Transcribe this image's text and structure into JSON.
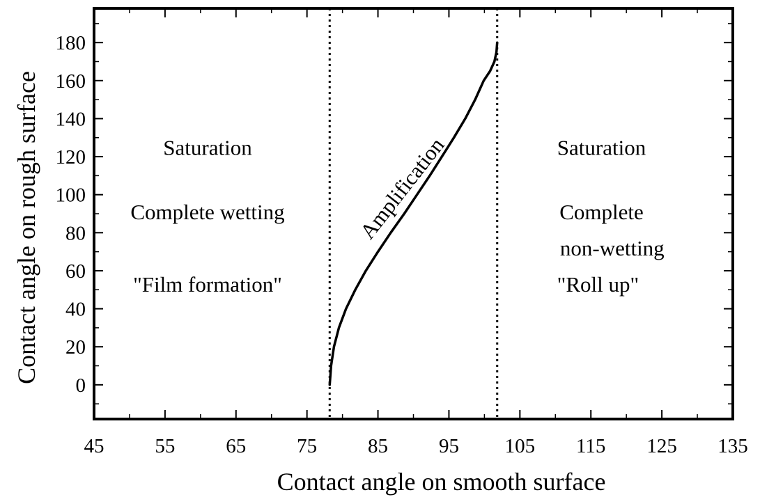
{
  "chart_data": {
    "type": "line",
    "xlabel": "Contact angle on smooth surface",
    "ylabel": "Contact angle on rough surface",
    "xlim": [
      45,
      135
    ],
    "ylim": [
      -18,
      198
    ],
    "xticks": [
      45,
      55,
      65,
      75,
      85,
      95,
      105,
      115,
      125,
      135
    ],
    "yticks": [
      0,
      20,
      40,
      60,
      80,
      100,
      120,
      140,
      160,
      180
    ],
    "grid": false,
    "series": [
      {
        "x": [
          78.2,
          78.4,
          78.8,
          79.5,
          80.5,
          81.8,
          83.3,
          85.0,
          86.8,
          88.7,
          90.5,
          92.3,
          94.0,
          95.7,
          97.3,
          98.7,
          99.9,
          100.8,
          101.4,
          101.7,
          101.8
        ],
        "y": [
          0,
          10,
          20,
          30,
          40,
          50,
          60,
          70,
          80,
          90,
          100,
          110,
          120,
          130,
          140,
          150,
          160,
          165,
          170,
          175,
          180
        ],
        "color": "#000000"
      }
    ],
    "vlines": [
      {
        "x": 78.2,
        "style": "dotted"
      },
      {
        "x": 101.8,
        "style": "dotted"
      }
    ],
    "annotations": [
      {
        "text": "Saturation",
        "x": 61,
        "y": 121,
        "rotation": 0
      },
      {
        "text": "Complete wetting",
        "x": 61,
        "y": 87,
        "rotation": 0
      },
      {
        "text": "\"Film formation\"",
        "x": 61,
        "y": 49,
        "rotation": 0
      },
      {
        "text": "Saturation",
        "x": 116.5,
        "y": 121,
        "rotation": 0
      },
      {
        "text": "Complete",
        "x": 116.5,
        "y": 87,
        "rotation": 0
      },
      {
        "text": "non-wetting",
        "x": 118,
        "y": 68,
        "rotation": 0
      },
      {
        "text": "\"Roll up\"",
        "x": 116,
        "y": 49,
        "rotation": 0
      },
      {
        "text": "Amplification",
        "x": 89.2,
        "y": 101,
        "rotation": -52
      }
    ]
  }
}
